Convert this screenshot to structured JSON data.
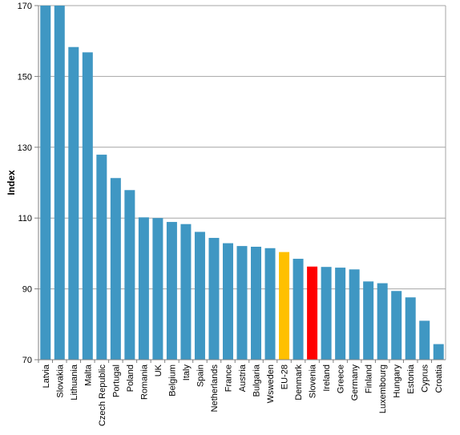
{
  "chart_data": {
    "type": "bar",
    "ylabel": "Index",
    "ylim": [
      70,
      170
    ],
    "yticks": [
      70,
      90,
      110,
      130,
      150,
      170
    ],
    "grid": true,
    "legend": "none",
    "colors": {
      "default": "#3f97c3",
      "highlight_eu": "#ffc000",
      "highlight_slovenia": "#ff0000",
      "grid": "#a6a6a6",
      "axis": "#808080"
    },
    "categories": [
      "Latvia",
      "Slovakia",
      "Lithuania",
      "Malta",
      "Czech Republic",
      "Portugal",
      "Poland",
      "Romania",
      "UK",
      "Belgium",
      "Italy",
      "Spain",
      "Netherlands",
      "France",
      "Austria",
      "Bulgaria",
      "Wsweden",
      "EU-28",
      "Denmark",
      "Slovenia",
      "Ireland",
      "Greece",
      "Germany",
      "Finland",
      "Luxembourg",
      "Hungary",
      "Estonia",
      "Cyprus",
      "Croatia"
    ],
    "values": [
      170,
      170,
      158.3,
      156.8,
      127.9,
      121.3,
      117.9,
      110.2,
      110.0,
      108.9,
      108.3,
      106.1,
      104.4,
      102.9,
      102.1,
      101.9,
      101.5,
      100.4,
      98.5,
      96.3,
      96.2,
      96.0,
      95.5,
      92.1,
      91.6,
      89.4,
      87.6,
      81.0,
      74.4
    ],
    "bar_colors": [
      "default",
      "default",
      "default",
      "default",
      "default",
      "default",
      "default",
      "default",
      "default",
      "default",
      "default",
      "default",
      "default",
      "default",
      "default",
      "default",
      "default",
      "highlight_eu",
      "default",
      "highlight_slovenia",
      "default",
      "default",
      "default",
      "default",
      "default",
      "default",
      "default",
      "default",
      "default"
    ]
  }
}
